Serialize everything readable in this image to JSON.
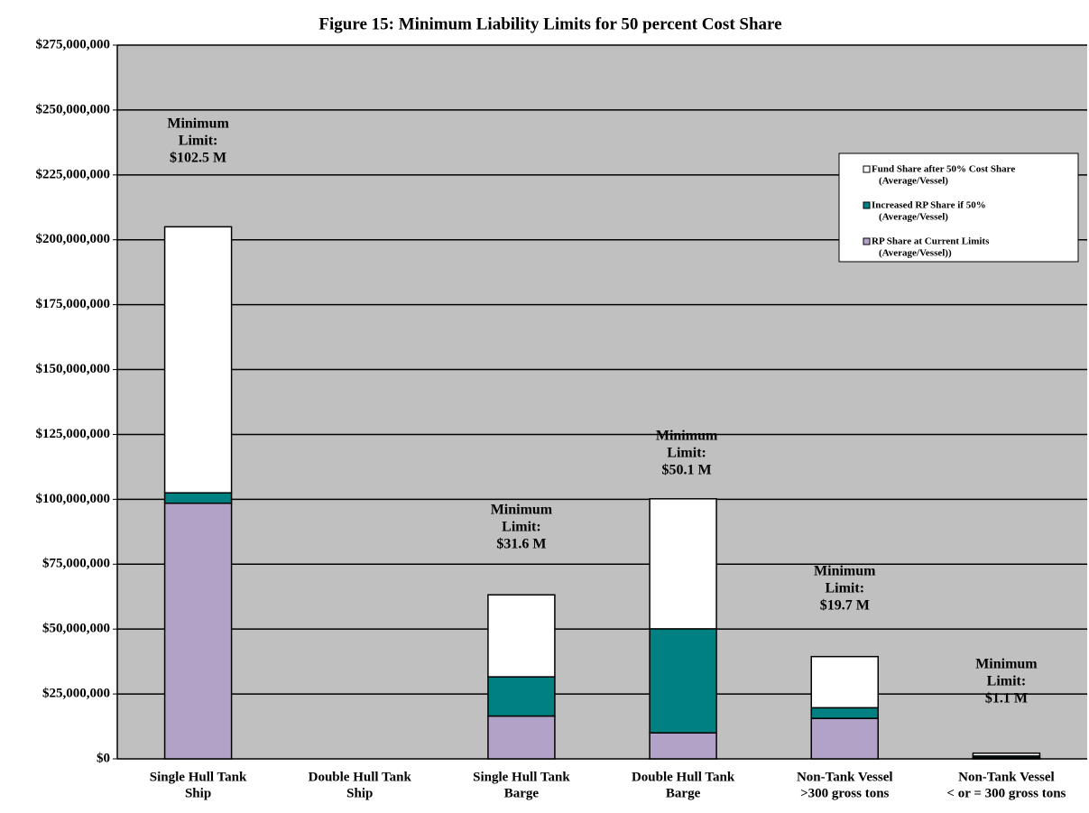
{
  "chart_data": {
    "type": "stacked_bar",
    "title": "Figure 15: Minimum Liability Limits for 50 percent Cost Share",
    "categories": [
      [
        "Single Hull Tank",
        "Ship"
      ],
      [
        "Double Hull Tank",
        "Ship"
      ],
      [
        "Single Hull Tank",
        "Barge"
      ],
      [
        "Double Hull Tank",
        "Barge"
      ],
      [
        "Non-Tank Vessel",
        ">300 gross tons"
      ],
      [
        "Non-Tank Vessel",
        "< or = 300 gross tons"
      ]
    ],
    "series": [
      {
        "name": [
          "RP Share at Current Limits",
          "(Average/Vessel))"
        ],
        "color": "#b3a2c7",
        "values": [
          98500000,
          0,
          16500000,
          10000000,
          15600000,
          500000
        ]
      },
      {
        "name": [
          "Increased RP Share if 50%",
          "(Average/Vessel)"
        ],
        "color": "#008080",
        "values": [
          4000000,
          0,
          15100000,
          40100000,
          4100000,
          600000
        ]
      },
      {
        "name": [
          "Fund Share after 50% Cost Share",
          "(Average/Vessel)"
        ],
        "color": "#ffffff",
        "values": [
          102500000,
          0,
          31600000,
          50100000,
          19700000,
          1100000
        ]
      }
    ],
    "annotations": [
      [
        "Minimum",
        "Limit:",
        "$102.5 M"
      ],
      null,
      [
        "Minimum",
        "Limit:",
        "$31.6 M"
      ],
      [
        "Minimum",
        "Limit:",
        "$50.1 M"
      ],
      [
        "Minimum",
        "Limit:",
        "$19.7 M"
      ],
      [
        "Minimum",
        "Limit:",
        "$1.1 M"
      ]
    ],
    "ylim": [
      0,
      275000000
    ],
    "yticks": [
      {
        "value": 0,
        "label": "$0"
      },
      {
        "value": 25000000,
        "label": "$25,000,000"
      },
      {
        "value": 50000000,
        "label": "$50,000,000"
      },
      {
        "value": 75000000,
        "label": "$75,000,000"
      },
      {
        "value": 100000000,
        "label": "$100,000,000"
      },
      {
        "value": 125000000,
        "label": "$125,000,000"
      },
      {
        "value": 150000000,
        "label": "$150,000,000"
      },
      {
        "value": 175000000,
        "label": "$175,000,000"
      },
      {
        "value": 200000000,
        "label": "$200,000,000"
      },
      {
        "value": 225000000,
        "label": "$225,000,000"
      },
      {
        "value": 250000000,
        "label": "$250,000,000"
      },
      {
        "value": 275000000,
        "label": "$275,000,000"
      }
    ],
    "grid": true,
    "legend": "upper right"
  }
}
